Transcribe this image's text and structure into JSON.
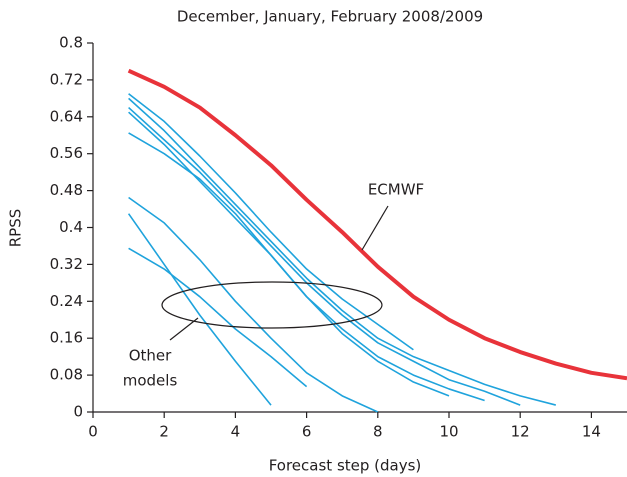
{
  "chart_data": {
    "type": "line",
    "title": "December, January, February 2008/2009",
    "x_label": "Forecast step (days)",
    "y_label": "RPSS",
    "x": [
      1,
      2,
      3,
      4,
      5,
      6,
      7,
      8,
      9,
      10,
      11,
      12,
      13,
      14,
      15
    ],
    "series": [
      {
        "name": "ECMWF",
        "color": "#e8333a",
        "width": 4,
        "values": [
          0.74,
          0.705,
          0.66,
          0.6,
          0.535,
          0.46,
          0.39,
          0.315,
          0.25,
          0.2,
          0.16,
          0.13,
          0.105,
          0.085,
          0.073
        ]
      },
      {
        "color": "#1fa3dc",
        "width": 1.6,
        "values": [
          0.69,
          0.63,
          0.555,
          0.475,
          0.39,
          0.31,
          0.245,
          0.19,
          0.135,
          null,
          null,
          null,
          null,
          null,
          null
        ]
      },
      {
        "color": "#1fa3dc",
        "width": 1.6,
        "values": [
          0.68,
          0.61,
          0.53,
          0.45,
          0.37,
          0.29,
          0.22,
          0.16,
          0.12,
          0.09,
          0.06,
          0.035,
          0.015,
          null,
          null
        ]
      },
      {
        "color": "#1fa3dc",
        "width": 1.6,
        "values": [
          0.66,
          0.59,
          0.52,
          0.44,
          0.36,
          0.28,
          0.21,
          0.15,
          0.11,
          0.07,
          0.045,
          0.015,
          null,
          null,
          null
        ]
      },
      {
        "color": "#1fa3dc",
        "width": 1.6,
        "values": [
          0.65,
          0.58,
          0.5,
          0.42,
          0.34,
          0.25,
          0.18,
          0.12,
          0.08,
          0.05,
          0.025,
          null,
          null,
          null,
          null
        ]
      },
      {
        "color": "#1fa3dc",
        "width": 1.6,
        "values": [
          0.605,
          0.56,
          0.505,
          0.43,
          0.34,
          0.25,
          0.17,
          0.11,
          0.065,
          0.035,
          null,
          null,
          null,
          null,
          null
        ]
      },
      {
        "color": "#1fa3dc",
        "width": 1.6,
        "values": [
          0.465,
          0.41,
          0.33,
          0.24,
          0.16,
          0.085,
          0.035,
          0,
          null,
          null,
          null,
          null,
          null,
          null,
          null
        ]
      },
      {
        "color": "#1fa3dc",
        "width": 1.6,
        "values": [
          0.43,
          0.32,
          0.21,
          0.11,
          0.015,
          null,
          null,
          null,
          null,
          null,
          null,
          null,
          null,
          null,
          null
        ]
      },
      {
        "color": "#1fa3dc",
        "width": 1.6,
        "values": [
          0.355,
          0.31,
          0.25,
          0.18,
          0.12,
          0.055,
          null,
          null,
          null,
          null,
          null,
          null,
          null,
          null,
          null
        ]
      }
    ],
    "annotation": [
      "Other",
      "models"
    ],
    "xlim": [
      0,
      15
    ],
    "xticks": [
      0,
      2,
      4,
      6,
      8,
      10,
      12,
      14
    ],
    "ylim": [
      0,
      0.8
    ],
    "yticks": [
      0,
      0.08,
      0.16,
      0.24,
      0.32,
      0.4,
      0.48,
      0.56,
      0.64,
      0.72,
      0.8
    ]
  }
}
